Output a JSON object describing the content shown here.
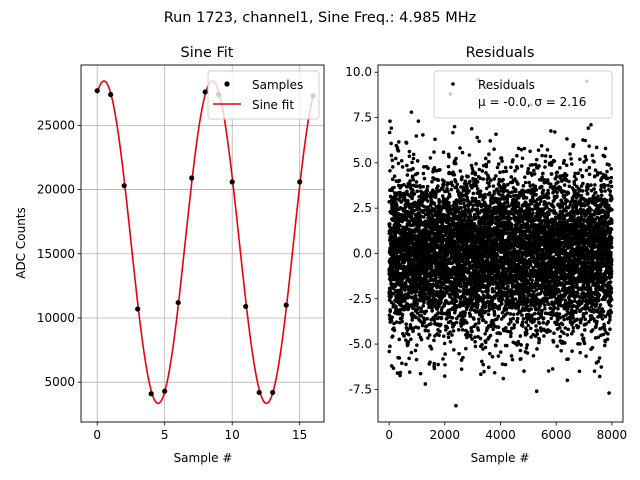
{
  "figure": {
    "suptitle": "Run 1723, channel1, Sine Freq.: 4.985 MHz"
  },
  "chart_data": [
    {
      "type": "line",
      "title": "Sine Fit",
      "xlabel": "Sample #",
      "ylabel": "ADC Counts",
      "xlim": [
        -1.2,
        16.8
      ],
      "ylim": [
        1900,
        29700
      ],
      "xticks": [
        0,
        5,
        10,
        15
      ],
      "yticks": [
        5000,
        10000,
        15000,
        20000,
        25000
      ],
      "grid": true,
      "legend_position": "top-right",
      "series": [
        {
          "name": "Samples",
          "kind": "scatter",
          "color": "#000000",
          "x": [
            0,
            1,
            2,
            3,
            4,
            5,
            6,
            7,
            8,
            9,
            10,
            11,
            12,
            13,
            14,
            15,
            16
          ],
          "y": [
            27700,
            27400,
            20300,
            10700,
            4100,
            4300,
            11200,
            20900,
            27600,
            27400,
            20600,
            10900,
            4200,
            4200,
            11000,
            20600,
            27300
          ]
        },
        {
          "name": "Sine fit",
          "kind": "line",
          "color": "#e8000b",
          "function": {
            "form": "sine",
            "offset": 15900,
            "amplitude": 12550,
            "period": 8.025,
            "peak_x": 0.5
          },
          "x_range": [
            0,
            16
          ]
        }
      ]
    },
    {
      "type": "scatter",
      "title": "Residuals",
      "xlabel": "Sample #",
      "ylabel": "",
      "xlim": [
        -400,
        8400
      ],
      "ylim": [
        -9.3,
        10.4
      ],
      "xticks": [
        0,
        2000,
        4000,
        6000,
        8000
      ],
      "yticks": [
        -7.5,
        -5.0,
        -2.5,
        0.0,
        2.5,
        5.0,
        7.5,
        10.0
      ],
      "grid": false,
      "legend_position": "top-right",
      "series": [
        {
          "name": "Residuals",
          "legend_note": "μ = -0.0, σ = 2.16",
          "color": "#000000",
          "distribution": {
            "n": 8000,
            "mean": 0.0,
            "std": 2.16
          },
          "x_range": [
            0,
            7999
          ],
          "outliers": [
            {
              "x": 30,
              "y": 7.3
            },
            {
              "x": 800,
              "y": 7.8
            },
            {
              "x": 1050,
              "y": 7.3
            },
            {
              "x": 2200,
              "y": 8.8
            },
            {
              "x": 2350,
              "y": 7.0
            },
            {
              "x": 3200,
              "y": 9.6
            },
            {
              "x": 5100,
              "y": 8.2
            },
            {
              "x": 7100,
              "y": 9.5
            },
            {
              "x": 7250,
              "y": 7.1
            },
            {
              "x": 2400,
              "y": -8.4
            },
            {
              "x": 1300,
              "y": -7.2
            },
            {
              "x": 5300,
              "y": -7.6
            },
            {
              "x": 7900,
              "y": -7.7
            },
            {
              "x": 4100,
              "y": -6.9
            },
            {
              "x": 6400,
              "y": -7.0
            },
            {
              "x": 300,
              "y": -6.6
            }
          ]
        }
      ]
    }
  ]
}
